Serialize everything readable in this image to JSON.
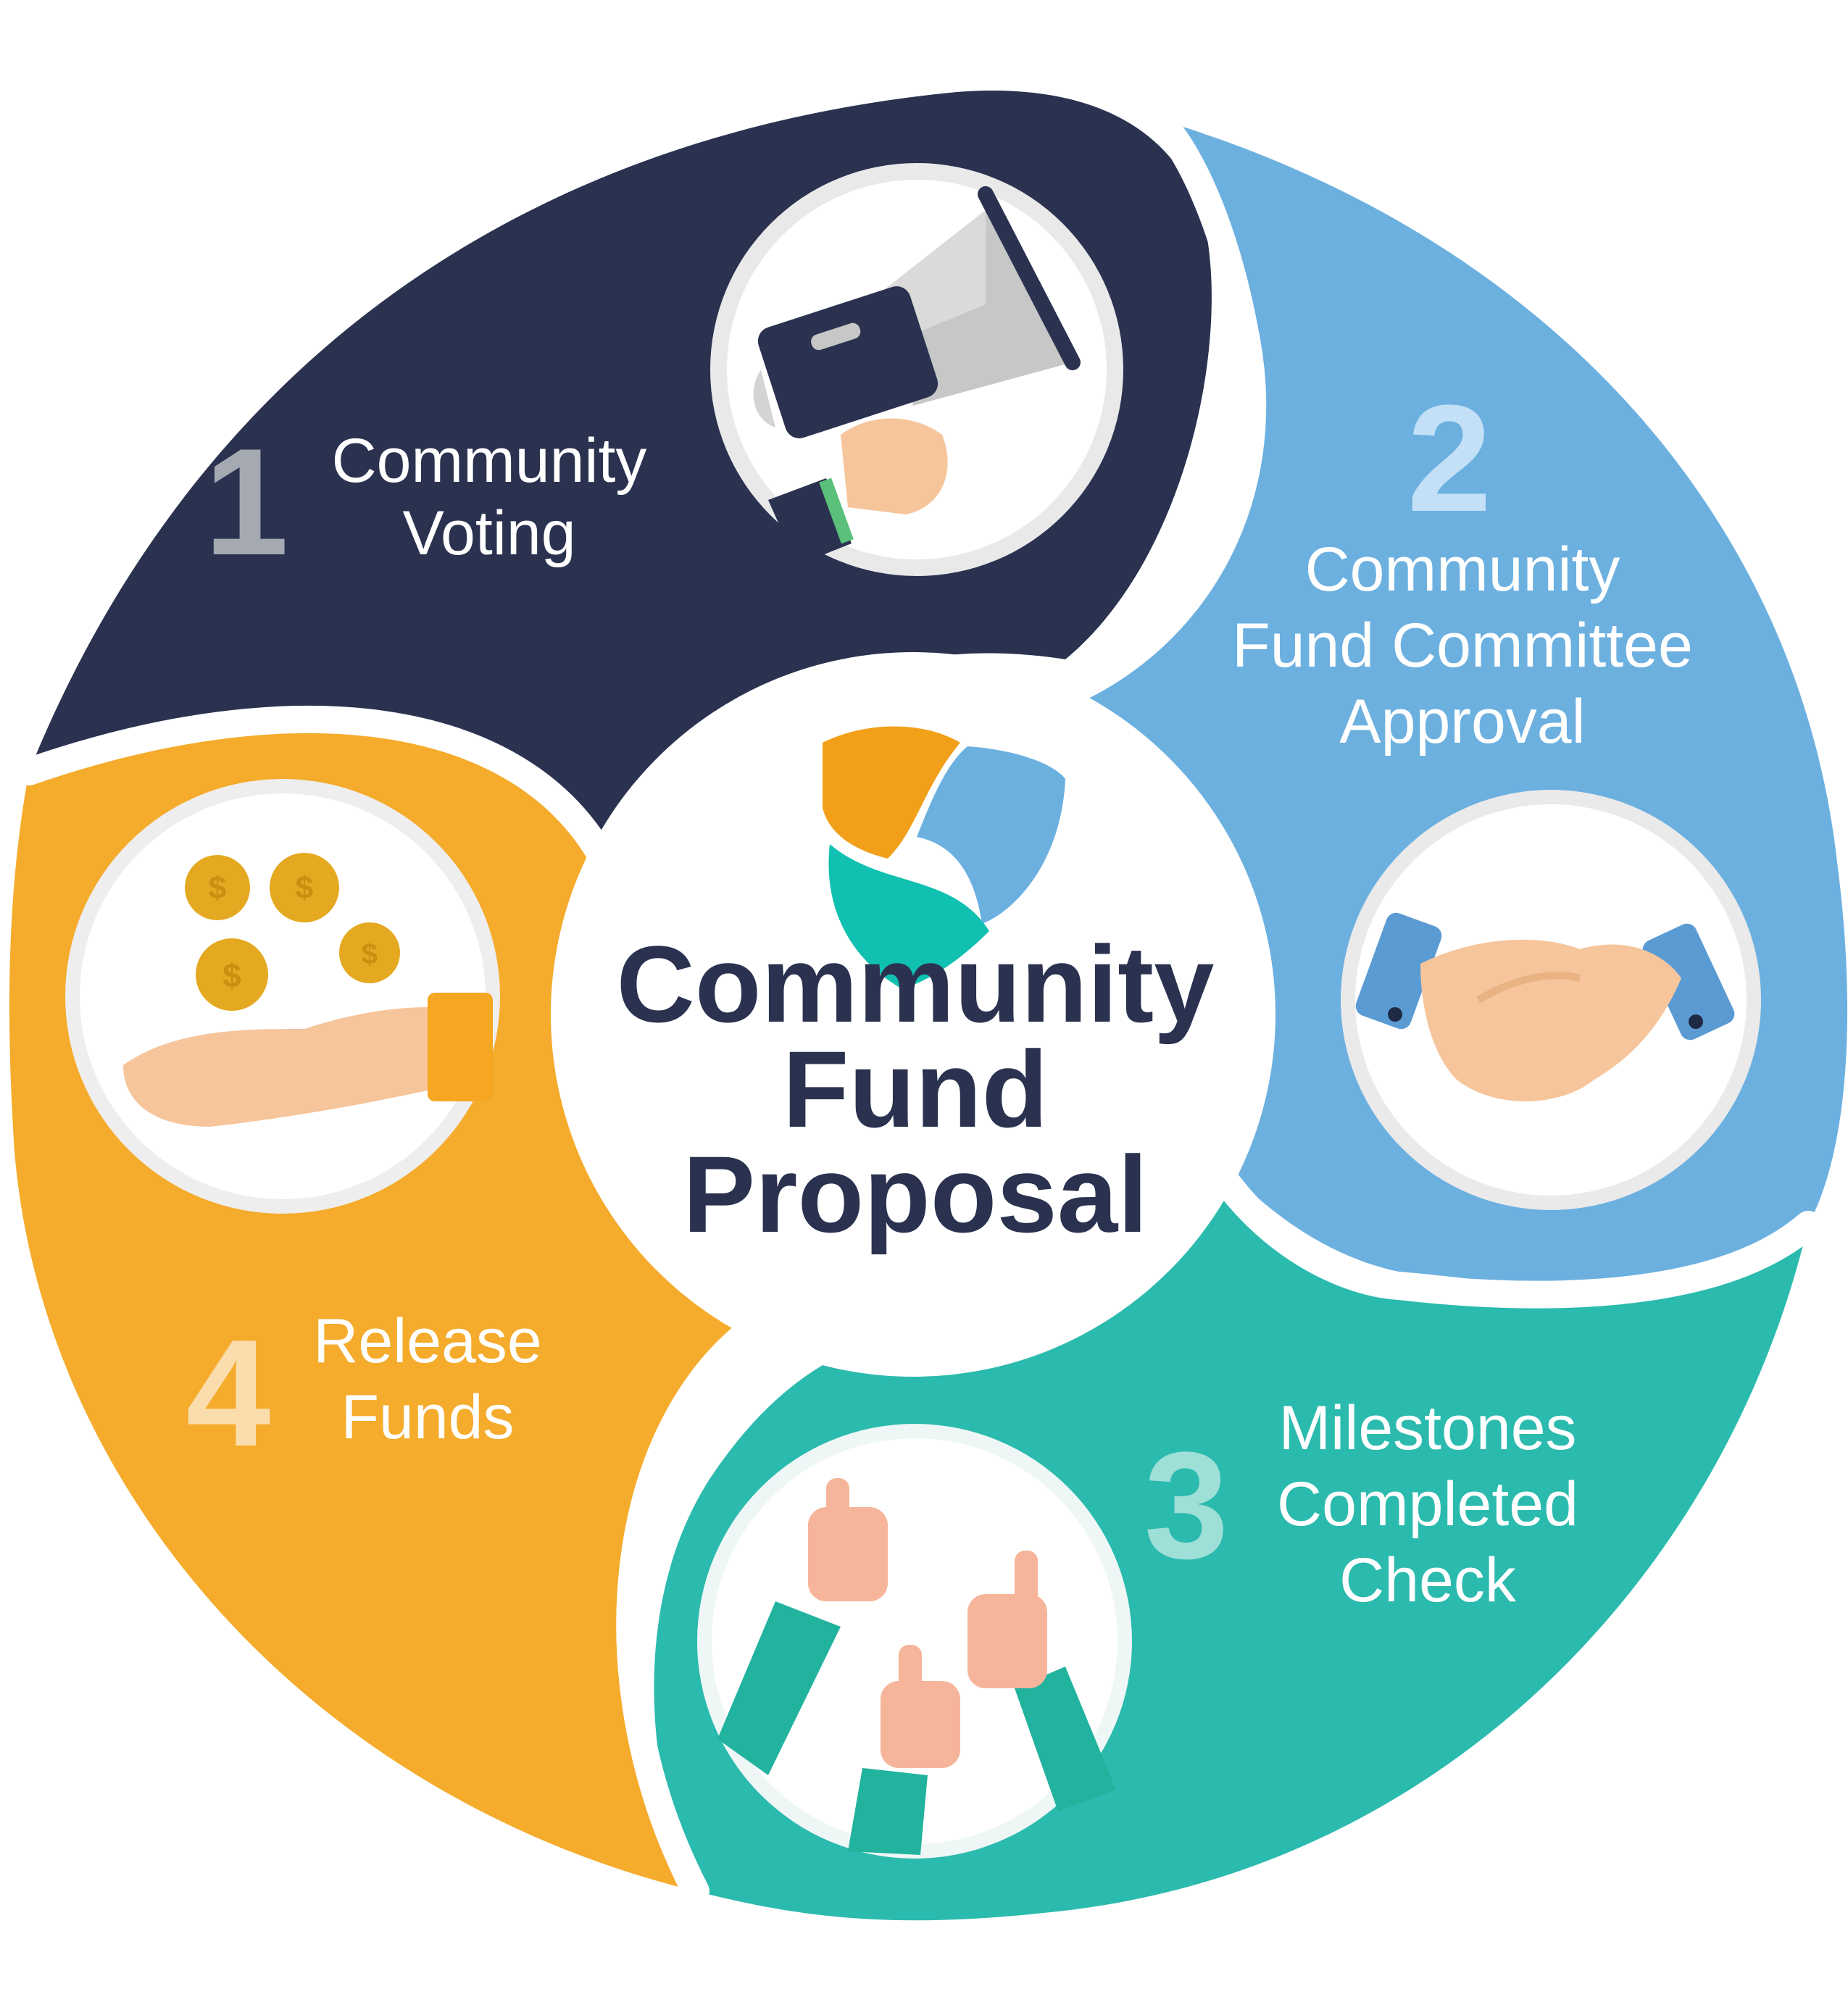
{
  "colors": {
    "navy": "#2a3250",
    "blue": "#6cb0e0",
    "teal": "#2bbaae",
    "orange": "#f5ab2c",
    "number_1": "#a4a9b2",
    "number_2": "#c4e0f6",
    "number_3": "#9edfd8",
    "number_4": "#fbdcac"
  },
  "center": {
    "title_lines": [
      "Community",
      "Fund",
      "Proposal"
    ],
    "logo_icon": "nem-shield-logo-icon"
  },
  "steps": [
    {
      "number": "1",
      "label_lines": [
        "Community",
        "Voting"
      ],
      "icon": "megaphone-icon",
      "color": "#2a3250"
    },
    {
      "number": "2",
      "label_lines": [
        "Community",
        "Fund Committee",
        "Approval"
      ],
      "icon": "handshake-icon",
      "color": "#6cb0e0"
    },
    {
      "number": "3",
      "label_lines": [
        "Milestones",
        "Completed",
        "Check"
      ],
      "icon": "thumbs-up-icon",
      "color": "#2bbaae"
    },
    {
      "number": "4",
      "label_lines": [
        "Release",
        "Funds"
      ],
      "icon": "coins-hand-icon",
      "color": "#f5ab2c"
    }
  ]
}
